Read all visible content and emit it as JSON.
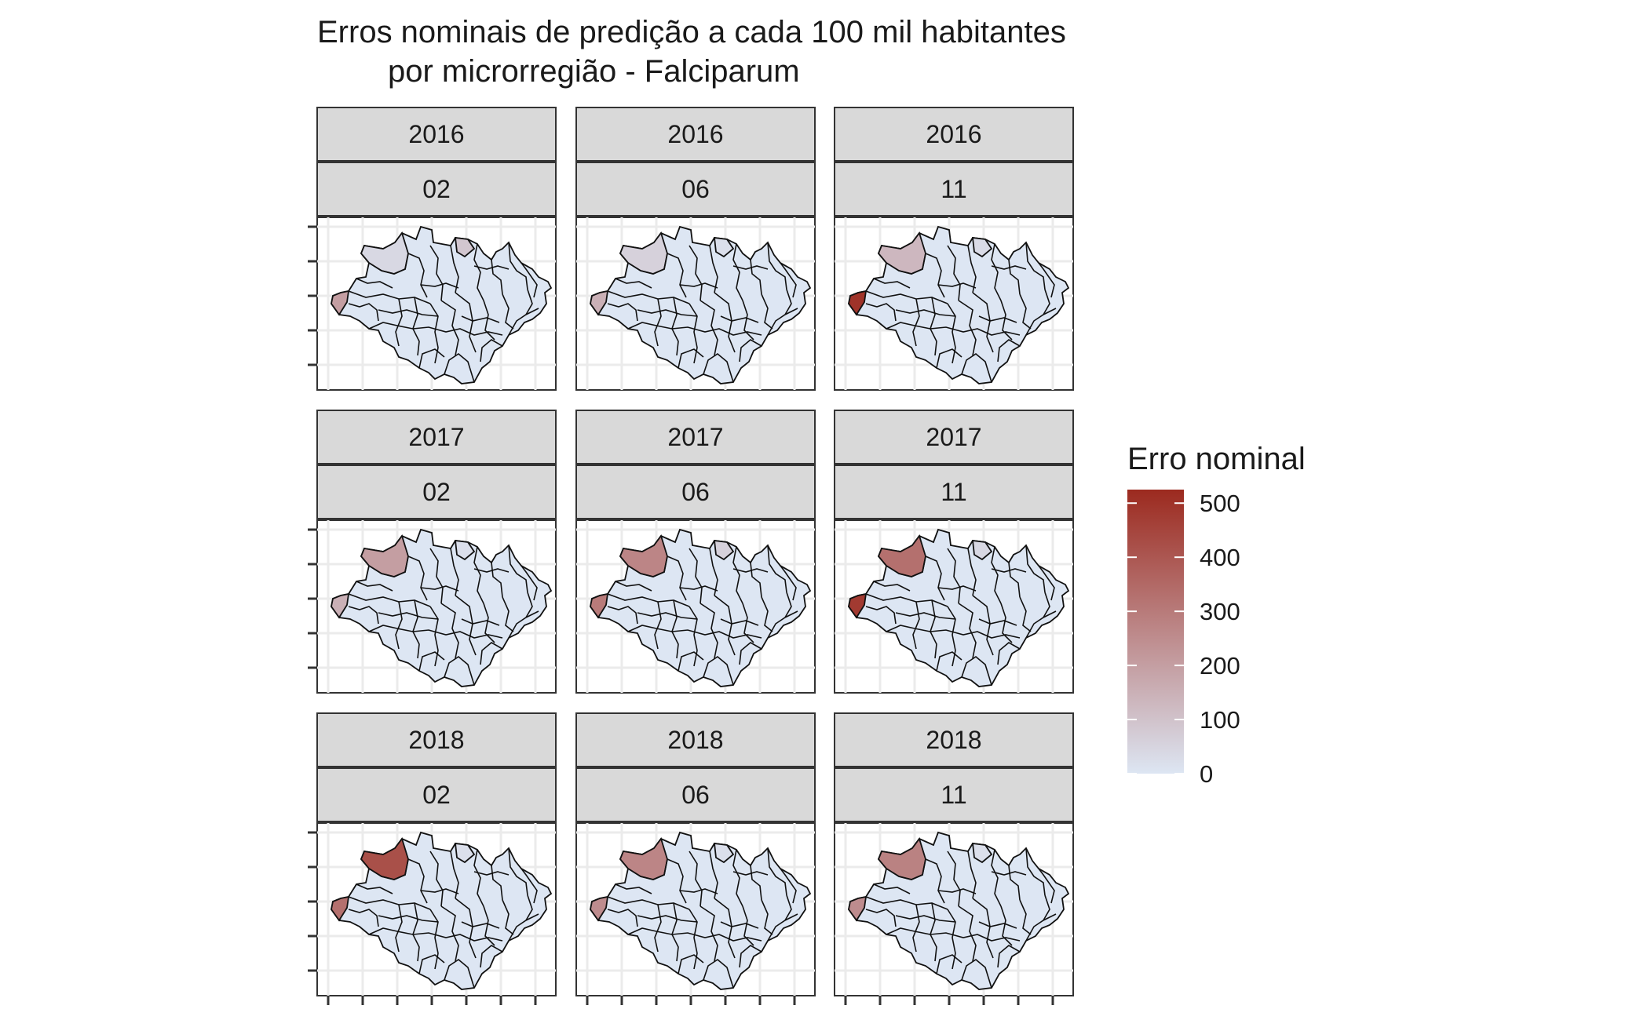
{
  "chart_data": {
    "type": "choropleth",
    "title": "Erros nominais de predição a cada 100 mil habitantes",
    "subtitle": "por microrregião - Falciparum",
    "facet_rows": [
      "2016",
      "2017",
      "2018"
    ],
    "facet_cols": [
      "02",
      "06",
      "11"
    ],
    "legend": {
      "title": "Erro nominal",
      "ticks": [
        "500",
        "400",
        "300",
        "200",
        "100",
        "0"
      ],
      "tick_values": [
        500,
        400,
        300,
        200,
        100,
        0
      ],
      "range": [
        0,
        525
      ],
      "low_color": "#dde6f3",
      "high_color": "#9c2a1f",
      "placement": "right"
    },
    "map_region": "Amazônia Legal (microrregiões)",
    "approx_highlighted_errors": [
      {
        "year": "2016",
        "month": "02",
        "west_region": 200,
        "north_west_region": 40,
        "north_region": 90
      },
      {
        "year": "2016",
        "month": "06",
        "west_region": 150,
        "north_west_region": 60,
        "north_region": 20
      },
      {
        "year": "2016",
        "month": "11",
        "west_region": 500,
        "north_west_region": 130,
        "north_region": 30
      },
      {
        "year": "2017",
        "month": "02",
        "west_region": 150,
        "north_west_region": 200,
        "north_region": 20
      },
      {
        "year": "2017",
        "month": "06",
        "west_region": 300,
        "north_west_region": 270,
        "north_region": 60
      },
      {
        "year": "2017",
        "month": "11",
        "west_region": 480,
        "north_west_region": 330,
        "north_region": 40
      },
      {
        "year": "2018",
        "month": "02",
        "west_region": 330,
        "north_west_region": 420,
        "north_region": 20
      },
      {
        "year": "2018",
        "month": "06",
        "west_region": 250,
        "north_west_region": 270,
        "north_region": 20
      },
      {
        "year": "2018",
        "month": "11",
        "west_region": 250,
        "north_west_region": 280,
        "north_region": 20
      }
    ]
  }
}
